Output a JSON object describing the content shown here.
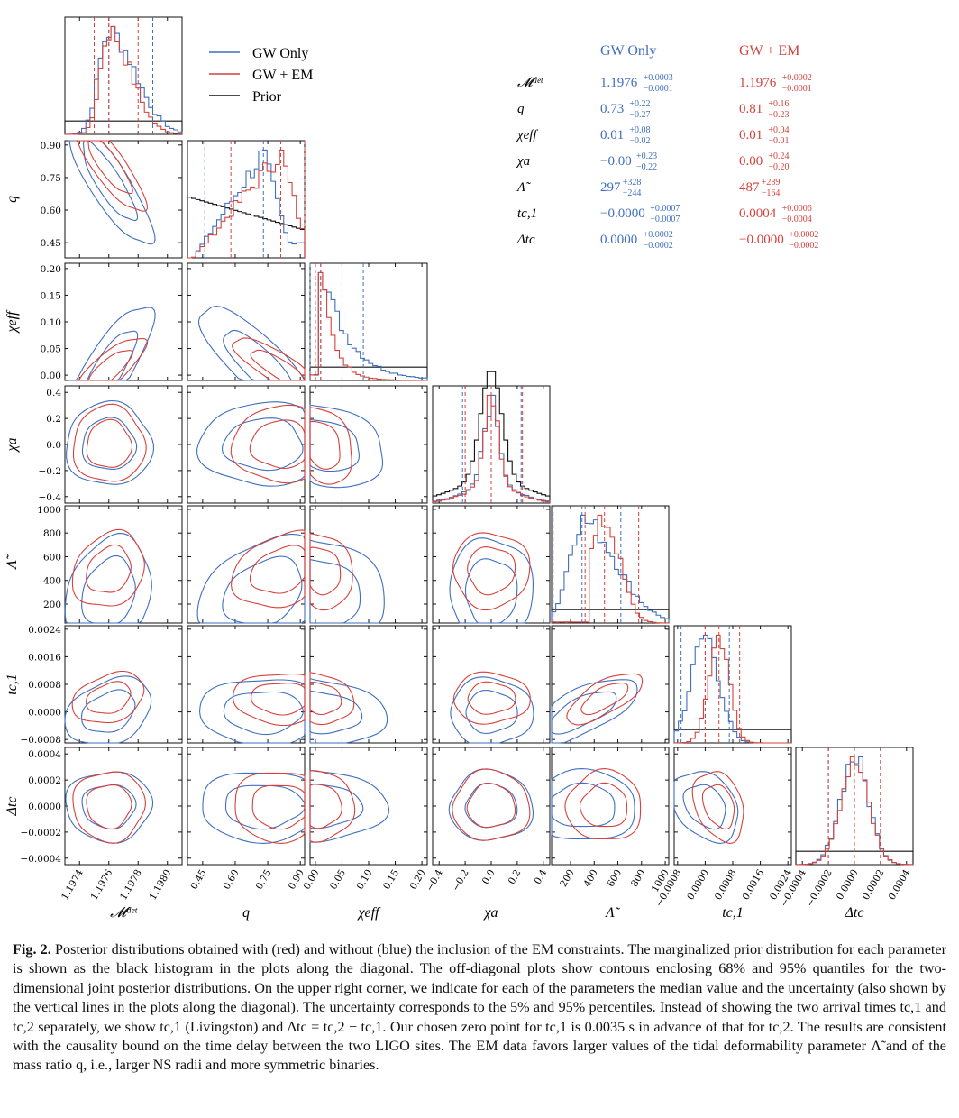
{
  "colors": {
    "gw_only": "#3f6fbf",
    "gw_em": "#d6413b",
    "prior": "#111111"
  },
  "legend": [
    "GW Only",
    "GW + EM",
    "Prior"
  ],
  "table": {
    "headers": [
      "GW Only",
      "GW + EM"
    ],
    "rows": [
      {
        "param": "𝓜ᵈᵉᵗ",
        "gw": {
          "v": "1.1976",
          "up": "+0.0003",
          "lo": "−0.0001"
        },
        "em": {
          "v": "1.1976",
          "up": "+0.0002",
          "lo": "−0.0001"
        }
      },
      {
        "param": "q",
        "gw": {
          "v": "0.73",
          "up": "+0.22",
          "lo": "−0.27"
        },
        "em": {
          "v": "0.81",
          "up": "+0.16",
          "lo": "−0.23"
        }
      },
      {
        "param": "χeff",
        "gw": {
          "v": "0.01",
          "up": "+0.08",
          "lo": "−0.02"
        },
        "em": {
          "v": "0.01",
          "up": "+0.04",
          "lo": "−0.01"
        }
      },
      {
        "param": "χa",
        "gw": {
          "v": "−0.00",
          "up": "+0.23",
          "lo": "−0.22"
        },
        "em": {
          "v": "0.00",
          "up": "+0.24",
          "lo": "−0.20"
        }
      },
      {
        "param": "Λ̃",
        "gw": {
          "v": "297",
          "up": "+328",
          "lo": "−244"
        },
        "em": {
          "v": "487",
          "up": "+289",
          "lo": "−164"
        }
      },
      {
        "param": "tc,1",
        "gw": {
          "v": "−0.0000",
          "up": "+0.0007",
          "lo": "−0.0007"
        },
        "em": {
          "v": "0.0004",
          "up": "+0.0006",
          "lo": "−0.0004"
        }
      },
      {
        "param": "Δtc",
        "gw": {
          "v": "0.0000",
          "up": "+0.0002",
          "lo": "−0.0002"
        },
        "em": {
          "v": "−0.0000",
          "up": "+0.0002",
          "lo": "−0.0002"
        }
      }
    ]
  },
  "chart_data": {
    "type": "corner",
    "parameters": [
      {
        "label": "𝓜ᵈᵉᵗ",
        "range": [
          1.1973,
          1.1981
        ],
        "ticks": [
          1.1974,
          1.1976,
          1.1978,
          1.198
        ],
        "tick_labels": [
          "1.1974",
          "1.1976",
          "1.1978",
          "1.1980"
        ]
      },
      {
        "label": "q",
        "range": [
          0.38,
          0.92
        ],
        "ticks": [
          0.45,
          0.6,
          0.75,
          0.9
        ],
        "tick_labels": [
          "0.45",
          "0.60",
          "0.75",
          "0.90"
        ]
      },
      {
        "label": "χeff",
        "range": [
          -0.01,
          0.21
        ],
        "ticks": [
          0,
          0.05,
          0.1,
          0.15,
          0.2
        ],
        "tick_labels": [
          "0.00",
          "0.05",
          "0.10",
          "0.15",
          "0.20"
        ]
      },
      {
        "label": "χa",
        "range": [
          -0.45,
          0.45
        ],
        "ticks": [
          -0.4,
          -0.2,
          0,
          0.2,
          0.4
        ],
        "tick_labels": [
          "−0.4",
          "−0.2",
          "0.0",
          "0.2",
          "0.4"
        ]
      },
      {
        "label": "Λ̃",
        "range": [
          40,
          1030
        ],
        "ticks": [
          200,
          400,
          600,
          800,
          1000
        ],
        "tick_labels": [
          "200",
          "400",
          "600",
          "800",
          "1000"
        ]
      },
      {
        "label": "tc,1",
        "range": [
          -0.0009,
          0.0025
        ],
        "ticks": [
          -0.0008,
          0,
          0.0008,
          0.0016,
          0.0024
        ],
        "tick_labels": [
          "−0.0008",
          "0.0000",
          "0.0008",
          "0.0016",
          "0.0024"
        ]
      },
      {
        "label": "Δtc",
        "range": [
          -0.00045,
          0.00045
        ],
        "ticks": [
          -0.0004,
          -0.0002,
          0,
          0.0002,
          0.0004
        ],
        "tick_labels": [
          "−0.0004",
          "−0.0002",
          "0.0000",
          "0.0002",
          "0.0004"
        ]
      }
    ],
    "series": [
      {
        "name": "GW Only",
        "median": [
          1.1976,
          0.73,
          0.01,
          0.0,
          297,
          0.0,
          0.0
        ],
        "q05": [
          1.1975,
          0.46,
          -0.01,
          -0.22,
          53,
          -0.0007,
          -0.0002
        ],
        "q95": [
          1.1979,
          0.95,
          0.09,
          0.23,
          625,
          0.0007,
          0.0002
        ],
        "sigma": [
          0.00012,
          0.12,
          0.05,
          0.13,
          190,
          0.0004,
          0.00011
        ],
        "hist_shape": [
          "skew-right",
          "rising",
          "decay",
          "peaked",
          "skew-right",
          "normal",
          "normal"
        ]
      },
      {
        "name": "GW + EM",
        "median": [
          1.1976,
          0.81,
          0.01,
          0.0,
          487,
          0.0004,
          0.0
        ],
        "q05": [
          1.1975,
          0.58,
          0.0,
          -0.2,
          323,
          0.0,
          -0.0002
        ],
        "q95": [
          1.1978,
          0.97,
          0.05,
          0.24,
          776,
          0.001,
          0.0002
        ],
        "sigma": [
          0.0001,
          0.09,
          0.025,
          0.12,
          130,
          0.0003,
          0.00011
        ],
        "hist_shape": [
          "skew-right",
          "rising",
          "decay",
          "peaked",
          "truncated",
          "normal",
          "normal"
        ]
      },
      {
        "name": "Prior",
        "hist_shape": [
          "flat",
          "decreasing",
          "flat",
          "peaked",
          "flat",
          "flat",
          "flat"
        ]
      }
    ],
    "contour_levels": [
      "68%",
      "95%"
    ],
    "correlations": {
      "1-0": -0.85,
      "2-0": 0.8,
      "2-1": -0.85,
      "3-0": 0.0,
      "3-1": 0.0,
      "3-2": -0.3,
      "4-0": 0.2,
      "4-1": 0.3,
      "4-2": -0.2,
      "4-3": 0.0,
      "5-0": 0.3,
      "5-1": 0.0,
      "5-2": -0.2,
      "5-3": 0.0,
      "5-4": 0.7,
      "6-0": 0.0,
      "6-1": 0.0,
      "6-2": 0.0,
      "6-3": 0.0,
      "6-4": 0.0,
      "6-5": -0.3
    }
  },
  "caption": {
    "label": "Fig. 2.",
    "text": "Posterior distributions obtained with (red) and without (blue) the inclusion of the EM constraints. The marginalized prior distribution for each parameter is shown as the black histogram in the plots along the diagonal. The off-diagonal plots show contours enclosing 68% and 95% quantiles for the two-dimensional joint posterior distributions. On the upper right corner, we indicate for each of the parameters the median value and the uncertainty (also shown by the vertical lines in the plots along the diagonal). The uncertainty corresponds to the 5% and 95% percentiles. Instead of showing the two arrival times tc,1 and tc,2 separately, we show tc,1 (Livingston) and Δtc = tc,2 − tc,1. Our chosen zero point for tc,1 is 0.0035 s in advance of that for tc,2. The results are consistent with the causality bound on the time delay between the two LIGO sites. The EM data favors larger values of the tidal deformability parameter Λ̃ and of the mass ratio q, i.e., larger NS radii and more symmetric binaries."
  }
}
